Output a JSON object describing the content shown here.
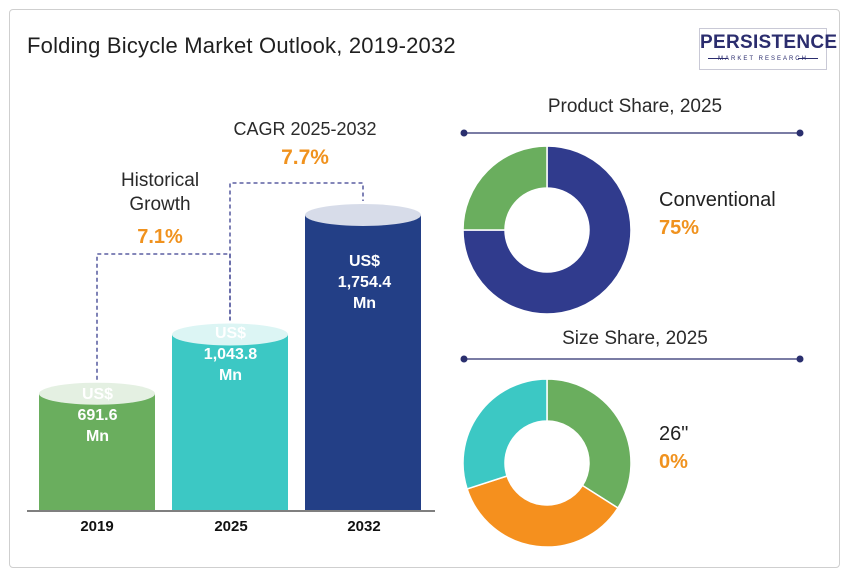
{
  "title": "Folding Bicycle Market Outlook, 2019-2032",
  "logo": {
    "word": "PERSISTENCE",
    "sub": "MARKET RESEARCH"
  },
  "colors": {
    "bar2019": "#6aae5e",
    "bar2025": "#3cc8c4",
    "bar2032": "#233f86",
    "accent": "#f0921e",
    "product_primary": "#303b8d",
    "product_secondary": "#6aae5e",
    "size_green": "#6aae5e",
    "size_orange": "#f5901e",
    "size_teal": "#3cc8c4"
  },
  "annotations": {
    "historical": {
      "line1": "Historical",
      "line2": "Growth",
      "value": "7.1%"
    },
    "cagr": {
      "label": "CAGR 2025-2032",
      "value": "7.7%"
    }
  },
  "chart_data": [
    {
      "type": "bar",
      "categories": [
        "2019",
        "2025",
        "2032"
      ],
      "values": [
        691.6,
        1043.8,
        1754.4
      ],
      "bar_labels": [
        [
          "US$",
          "691.6",
          "Mn"
        ],
        [
          "US$",
          "1,043.8",
          "Mn"
        ],
        [
          "US$",
          "1,754.4",
          "Mn"
        ]
      ]
    },
    {
      "type": "pie",
      "title": "Product Share, 2025",
      "slices": [
        {
          "name": "Conventional",
          "value": 75
        },
        {
          "value": 25
        }
      ],
      "highlight": {
        "name": "Conventional",
        "value": "75%"
      }
    },
    {
      "type": "pie",
      "title": "Size Share, 2025",
      "slices": [
        {
          "value": 34
        },
        {
          "value": 36
        },
        {
          "value": 30
        }
      ],
      "highlight": {
        "name": "26\"",
        "value": "0%"
      }
    }
  ]
}
